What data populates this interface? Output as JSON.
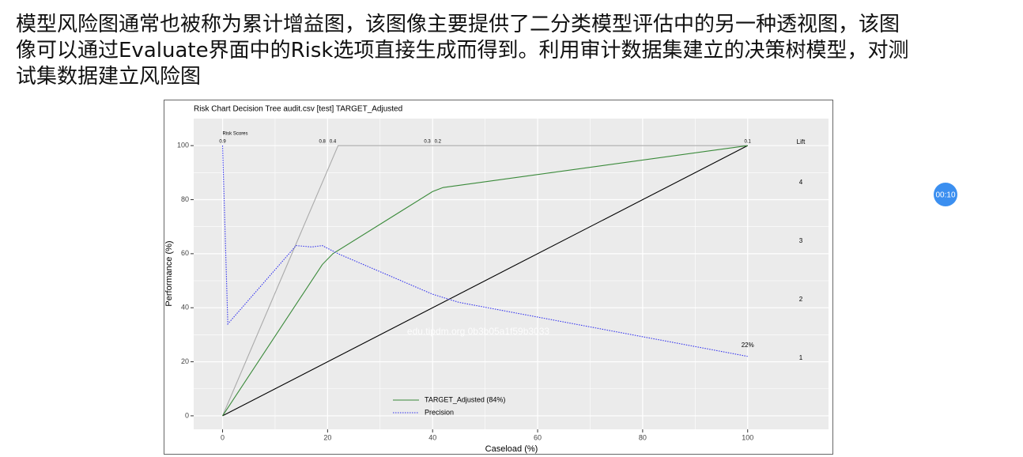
{
  "text_lines": [
    "模型风险图通常也被称为累计增益图，该图像主要提供了二分类模型评估中的另一种透视图，该图",
    "像可以通过Evaluate界面中的Risk选项直接生成而得到。利用审计数据集建立的决策树模型，对测",
    "试集数据建立风险图"
  ],
  "timer": "00:10",
  "chart_data": {
    "type": "line",
    "title": "Risk Chart Decision Tree audit.csv [test] TARGET_Adjusted",
    "x_label": "Caseload (%)",
    "y_label": "Performance (%)",
    "y2_label": "Lift",
    "watermark": "edu.tipdm.org 0b3b05a1f59b3033",
    "xlim": [
      -5.5,
      115.4
    ],
    "ylim": [
      -5,
      110
    ],
    "y2lim": [
      -0.22,
      5.09
    ],
    "xticks": [
      0,
      20,
      40,
      60,
      80,
      100
    ],
    "yticks": [
      0,
      20,
      40,
      60,
      80,
      100
    ],
    "y2ticks": [
      1,
      2,
      3,
      4
    ],
    "grid": true,
    "risk_scores": {
      "title": "Risk Scores",
      "labels": [
        "0.9",
        "0.8",
        "0.4",
        "0.3",
        "0.2",
        "0.1"
      ],
      "x": [
        0,
        19,
        21,
        39,
        41,
        100
      ]
    },
    "series": [
      {
        "color": "#aaaaaa",
        "style": "solid",
        "x": [
          0,
          22,
          100
        ],
        "values": [
          0,
          100,
          100
        ]
      },
      {
        "color": "#000000",
        "style": "solid",
        "x": [
          0,
          100
        ],
        "values": [
          0,
          100
        ]
      },
      {
        "name": "TARGET_Adjusted (84%)",
        "color": "#3a8a3a",
        "style": "solid",
        "x": [
          0,
          19,
          21,
          40,
          42,
          100
        ],
        "values": [
          0,
          56,
          60,
          83,
          84.5,
          100
        ]
      },
      {
        "name": "Precision",
        "color": "#3333ee",
        "style": "dotted",
        "x": [
          0,
          1,
          14,
          17,
          19,
          22,
          40,
          45,
          100
        ],
        "values": [
          100,
          34,
          63,
          62.5,
          63,
          60,
          45,
          42,
          22
        ],
        "value_labels": [
          null,
          null,
          null,
          null,
          null,
          null,
          null,
          null,
          "22%"
        ]
      }
    ]
  }
}
